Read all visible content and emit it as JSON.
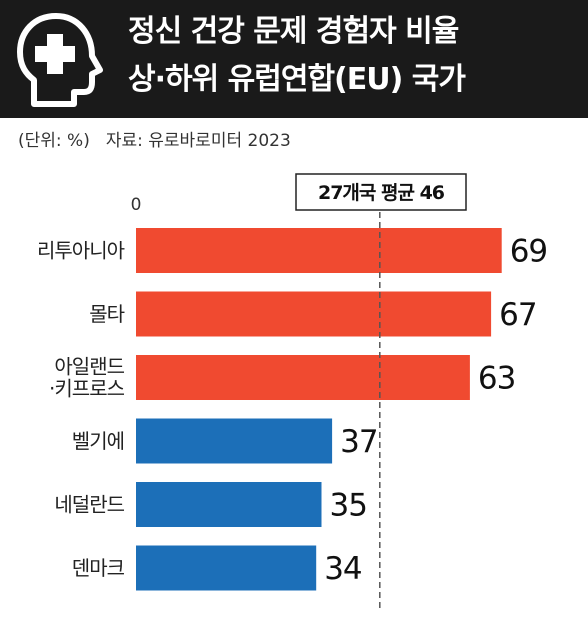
{
  "header": {
    "title_line1": "정신 건강 문제 경험자 비율",
    "title_line2": "상·하위 유럽연합(EU) 국가",
    "icon": "head-medical-cross-icon"
  },
  "meta": {
    "unit": "(단위: %)",
    "source": "자료: 유로바로미터 2023"
  },
  "colors": {
    "header_bg": "#1a1a1a",
    "top_bar": "#f04a30",
    "bottom_bar": "#1c6fb8",
    "avg_line": "#555555"
  },
  "chart_data": {
    "type": "bar",
    "orientation": "horizontal",
    "categories": [
      [
        "리투아니아"
      ],
      [
        "몰타"
      ],
      [
        "아일랜드",
        "·키프로스"
      ],
      [
        "벨기에"
      ],
      [
        "네덜란드"
      ],
      [
        "덴마크"
      ]
    ],
    "values": [
      69,
      67,
      63,
      37,
      35,
      34
    ],
    "groups": [
      "top",
      "top",
      "top",
      "bottom",
      "bottom",
      "bottom"
    ],
    "average": {
      "label": "27개국 평균 46",
      "value": 46
    },
    "x_tick_labels": [
      "0"
    ],
    "xlim": [
      0,
      75
    ],
    "data_labels": true,
    "grid": false
  }
}
